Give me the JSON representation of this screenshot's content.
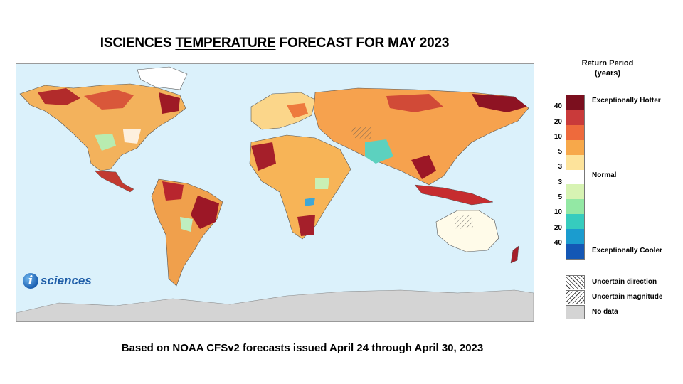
{
  "title": {
    "prefix": "ISCIENCES ",
    "underlined": "TEMPERATURE",
    "suffix": " FORECAST FOR MAY 2023"
  },
  "footer": "Based on NOAA CFSv2 forecasts issued April 24 through April 30, 2023",
  "logo": {
    "text": "sciences",
    "glyph": "i"
  },
  "legend": {
    "title_line1": "Return Period",
    "title_line2": "(years)",
    "colors": [
      "#7b0f1e",
      "#c93a3a",
      "#ee6a3c",
      "#f7a84a",
      "#fde39b",
      "#ffffff",
      "#d7f3b3",
      "#93e8a4",
      "#36ccbe",
      "#1b9ccf",
      "#1457b5"
    ],
    "ticks": [
      "40",
      "20",
      "10",
      "5",
      "3",
      "3",
      "5",
      "10",
      "20",
      "40"
    ],
    "label_hot": "Exceptionally Hotter",
    "label_normal": "Normal",
    "label_cool": "Exceptionally Cooler",
    "extras": {
      "uncertain_direction": "Uncertain direction",
      "uncertain_magnitude": "Uncertain magnitude",
      "no_data": "No data"
    }
  },
  "map": {
    "ocean_color": "#dbf1fb",
    "antarctica_color": "#d4d4d4"
  }
}
